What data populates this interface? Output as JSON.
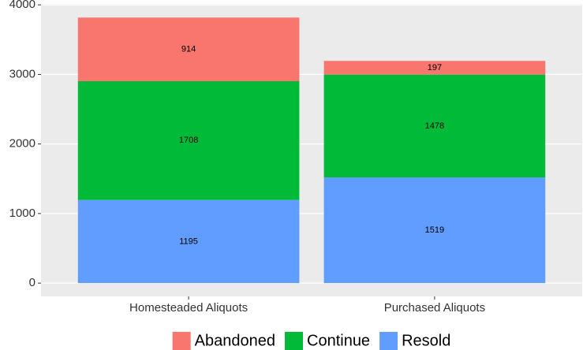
{
  "chart_data": {
    "type": "stacked_bar",
    "categories": [
      "Homesteaded Aliquots",
      "Purchased Aliquots"
    ],
    "series": [
      {
        "name": "Abandoned",
        "color": "#F8766D",
        "values": [
          914,
          197
        ]
      },
      {
        "name": "Continue",
        "color": "#00BA38",
        "values": [
          1708,
          1478
        ]
      },
      {
        "name": "Resold",
        "color": "#619CFF",
        "values": [
          1195,
          1519
        ]
      }
    ],
    "ylim": [
      -191,
      4013
    ],
    "yticks": [
      0,
      1000,
      2000,
      3000,
      4000
    ],
    "grid": true,
    "legend": "bottom"
  }
}
